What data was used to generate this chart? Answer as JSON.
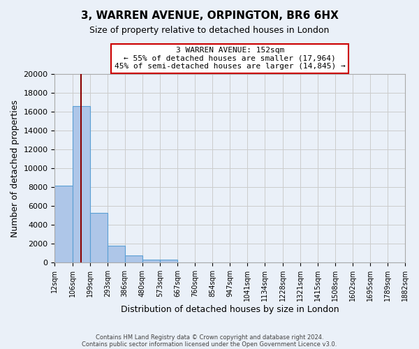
{
  "title": "3, WARREN AVENUE, ORPINGTON, BR6 6HX",
  "subtitle": "Size of property relative to detached houses in London",
  "xlabel": "Distribution of detached houses by size in London",
  "ylabel": "Number of detached properties",
  "bar_edges": [
    12,
    106,
    199,
    293,
    386,
    480,
    573,
    667,
    760,
    854,
    947,
    1041,
    1134,
    1228,
    1321,
    1415,
    1508,
    1602,
    1695,
    1789,
    1882
  ],
  "bar_values": [
    8150,
    16600,
    5300,
    1820,
    780,
    290,
    280,
    0,
    0,
    0,
    0,
    0,
    0,
    0,
    0,
    0,
    0,
    0,
    0,
    0
  ],
  "bar_color": "#aec6e8",
  "bar_edge_color": "#5a9fd4",
  "property_size": 152,
  "vline_color": "#8b0000",
  "annotation_title": "3 WARREN AVENUE: 152sqm",
  "annotation_line1": "← 55% of detached houses are smaller (17,964)",
  "annotation_line2": "45% of semi-detached houses are larger (14,845) →",
  "annotation_box_color": "#ffffff",
  "annotation_box_edge": "#cc0000",
  "ylim": [
    0,
    20000
  ],
  "yticks": [
    0,
    2000,
    4000,
    6000,
    8000,
    10000,
    12000,
    14000,
    16000,
    18000,
    20000
  ],
  "tick_labels": [
    "12sqm",
    "106sqm",
    "199sqm",
    "293sqm",
    "386sqm",
    "480sqm",
    "573sqm",
    "667sqm",
    "760sqm",
    "854sqm",
    "947sqm",
    "1041sqm",
    "1134sqm",
    "1228sqm",
    "1321sqm",
    "1415sqm",
    "1508sqm",
    "1602sqm",
    "1695sqm",
    "1789sqm",
    "1882sqm"
  ],
  "grid_color": "#cccccc",
  "bg_color": "#eaf0f8",
  "footer1": "Contains HM Land Registry data © Crown copyright and database right 2024.",
  "footer2": "Contains public sector information licensed under the Open Government Licence v3.0."
}
